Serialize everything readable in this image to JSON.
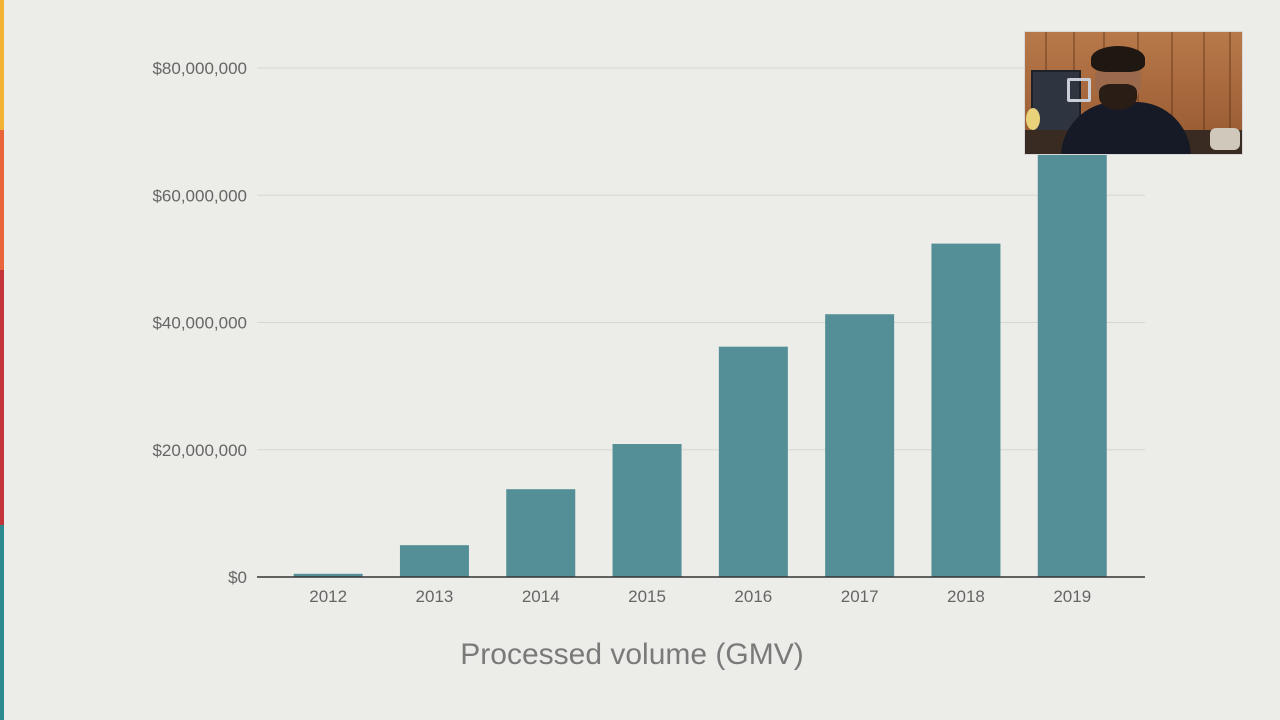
{
  "colors": {
    "background": "#ecece8",
    "bar": "#548f97",
    "gridline": "#d6d6d2",
    "axis": "#333333",
    "tick_text": "#666666",
    "caption_text": "#7a7a7a",
    "edge_stripes": [
      "#f2b233",
      "#e8653b",
      "#c2343a",
      "#2b8a8f"
    ]
  },
  "chart_data": {
    "type": "bar",
    "title": "",
    "xlabel": "",
    "ylabel": "",
    "caption": "Processed volume (GMV)",
    "categories": [
      "2012",
      "2013",
      "2014",
      "2015",
      "2016",
      "2017",
      "2018",
      "2019"
    ],
    "values": [
      500000,
      5000000,
      13800000,
      20900000,
      36200000,
      41300000,
      52400000,
      77000000
    ],
    "ylim": [
      0,
      80000000
    ],
    "yticks": [
      0,
      20000000,
      40000000,
      60000000,
      80000000
    ],
    "ytick_labels": [
      "$0",
      "$20,000,000",
      "$40,000,000",
      "$60,000,000",
      "$80,000,000"
    ],
    "grid": true,
    "legend": "none"
  },
  "overlay": {
    "webcam_icon": "presenter-webcam-feed"
  }
}
